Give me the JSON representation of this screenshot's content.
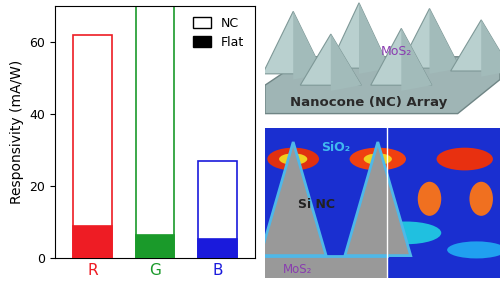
{
  "chart_data": {
    "type": "bar",
    "overlay": true,
    "categories": [
      "R",
      "G",
      "B"
    ],
    "y_label": "Responsivity (mA/W)",
    "ylim": [
      0,
      70
    ],
    "yticks": [
      0,
      20,
      40,
      60
    ],
    "legend": "upper right",
    "colors": [
      "#ee1c24",
      "#1a9a2a",
      "#1a1adc"
    ],
    "series": [
      {
        "name": "NC",
        "values": [
          62,
          70,
          27
        ]
      },
      {
        "name": "Flat",
        "values": [
          9,
          6.5,
          5.5
        ]
      }
    ]
  },
  "diagram": {
    "top": {
      "title": "Nanocone (NC) Array",
      "annotation": "MoS₂"
    },
    "bottom": {
      "labels": [
        "SiO₂",
        "Si NC",
        "MoS₂"
      ]
    }
  }
}
